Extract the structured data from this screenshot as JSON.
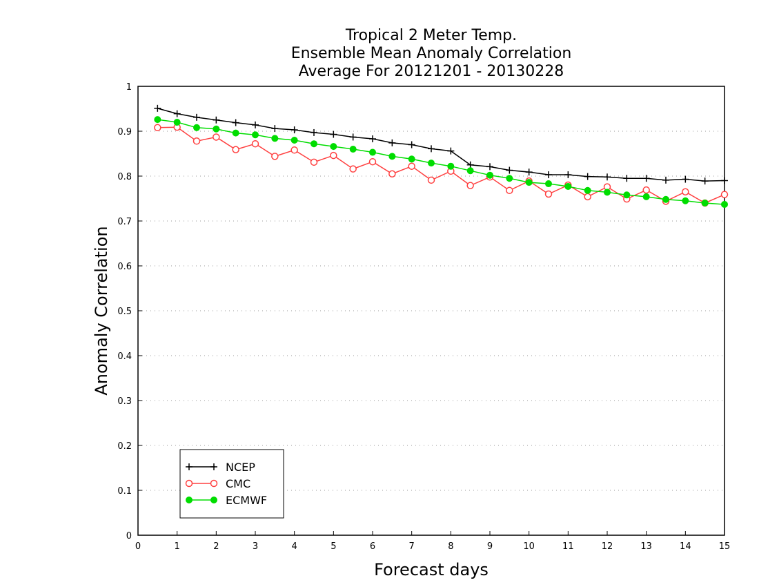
{
  "chart_data": {
    "type": "line",
    "title": [
      "Tropical 2 Meter Temp.",
      "Ensemble Mean Anomaly Correlation",
      "Average For 20121201 - 20130228"
    ],
    "xlabel": "Forecast days",
    "ylabel": "Anomaly Correlation",
    "xlim": [
      0,
      15
    ],
    "ylim": [
      0,
      1
    ],
    "xticks": [
      "0",
      "1",
      "2",
      "3",
      "4",
      "5",
      "6",
      "7",
      "8",
      "9",
      "10",
      "11",
      "12",
      "13",
      "14",
      "15"
    ],
    "yticks": [
      "0",
      "0.1",
      "0.2",
      "0.3",
      "0.4",
      "0.5",
      "0.6",
      "0.7",
      "0.8",
      "0.9",
      "1"
    ],
    "grid": "horizontal dotted",
    "legend_position": "bottom-left",
    "x": [
      0.5,
      1,
      1.5,
      2,
      2.5,
      3,
      3.5,
      4,
      4.5,
      5,
      5.5,
      6,
      6.5,
      7,
      7.5,
      8,
      8.5,
      9,
      9.5,
      10,
      10.5,
      11,
      11.5,
      12,
      12.5,
      13,
      13.5,
      14,
      14.5,
      15
    ],
    "series": [
      {
        "name": "NCEP",
        "color": "#000000",
        "marker": "plus",
        "values": [
          0.951,
          0.939,
          0.931,
          0.925,
          0.919,
          0.914,
          0.906,
          0.903,
          0.897,
          0.893,
          0.887,
          0.883,
          0.874,
          0.87,
          0.861,
          0.856,
          0.825,
          0.821,
          0.813,
          0.809,
          0.803,
          0.803,
          0.799,
          0.798,
          0.795,
          0.795,
          0.791,
          0.793,
          0.789,
          0.79
        ]
      },
      {
        "name": "CMC",
        "color": "#ff4040",
        "marker": "open-circle",
        "values": [
          0.908,
          0.909,
          0.878,
          0.887,
          0.859,
          0.872,
          0.844,
          0.858,
          0.831,
          0.846,
          0.816,
          0.832,
          0.805,
          0.822,
          0.791,
          0.811,
          0.779,
          0.798,
          0.768,
          0.789,
          0.76,
          0.78,
          0.754,
          0.776,
          0.749,
          0.769,
          0.744,
          0.765,
          0.74,
          0.759
        ]
      },
      {
        "name": "ECMWF",
        "color": "#00dd00",
        "marker": "filled-circle",
        "values": [
          0.926,
          0.92,
          0.908,
          0.905,
          0.896,
          0.892,
          0.884,
          0.88,
          0.872,
          0.866,
          0.86,
          0.853,
          0.844,
          0.838,
          0.829,
          0.822,
          0.812,
          0.802,
          0.795,
          0.786,
          0.783,
          0.777,
          0.768,
          0.764,
          0.758,
          0.754,
          0.748,
          0.745,
          0.74,
          0.737
        ]
      }
    ]
  }
}
